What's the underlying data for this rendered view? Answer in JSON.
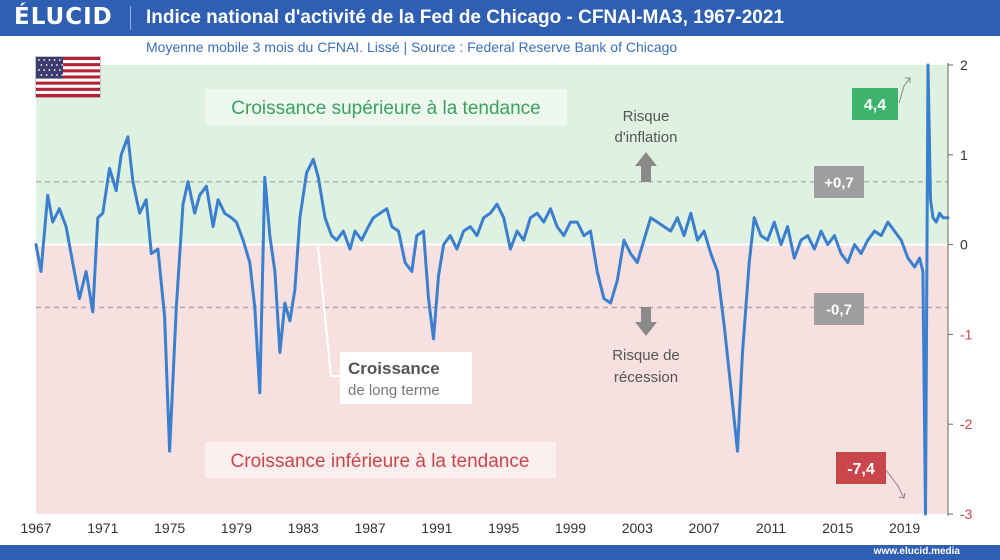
{
  "header": {
    "logo": "ÉLUCID",
    "title": "Indice national d'activité de la Fed de Chicago - CFNAI-MA3, 1967-2021",
    "subtitle": "Moyenne mobile 3 mois du CFNAI. Lissé  |  Source : Federal Reserve Bank of Chicago"
  },
  "footer": {
    "website": "www.elucid.media"
  },
  "colors": {
    "line": "#3b7fce",
    "positive_zone": "#dff2e1",
    "negative_zone": "#f7e0e0",
    "badge_high": "#3db36b",
    "badge_low": "#c9474a",
    "badge_grey": "#9e9e9e",
    "neg_tick": "#c9474a"
  },
  "icons": {
    "flag": "us-flag-icon",
    "up_arrow": "arrow-up-icon",
    "down_arrow": "arrow-down-icon"
  },
  "chart_data": {
    "type": "line",
    "xlim": [
      1967,
      2021.6
    ],
    "ylim": [
      -3,
      2
    ],
    "x_ticks": [
      1967,
      1971,
      1975,
      1979,
      1983,
      1987,
      1991,
      1995,
      1999,
      2003,
      2007,
      2011,
      2015,
      2019
    ],
    "y_ticks": [
      2,
      1,
      0,
      -1,
      -2,
      -3
    ],
    "threshold_lines": [
      0.7,
      -0.7
    ],
    "zones": {
      "upper_label": "Croissance supérieure à la tendance",
      "lower_label": "Croissance inférieure à la tendance"
    },
    "annotations": {
      "inflation": [
        "Risque",
        "d'inflation"
      ],
      "recession": [
        "Risque de",
        "récession"
      ],
      "long_term_title": "Croissance",
      "long_term_sub": "de long terme",
      "badge_plus": "+0,7",
      "badge_minus": "-0,7",
      "badge_max": "4,4",
      "badge_min": "-7,4"
    },
    "series": [
      {
        "x": [
          1967.0,
          1967.3,
          1967.7,
          1968.0,
          1968.4,
          1968.8,
          1969.2,
          1969.6,
          1970.0,
          1970.4,
          1970.7,
          1971.0,
          1971.4,
          1971.8,
          1972.1,
          1972.5,
          1972.8,
          1973.2,
          1973.6,
          1973.9,
          1974.3,
          1974.7,
          1975.0,
          1975.4,
          1975.8,
          1976.1,
          1976.5,
          1976.8,
          1977.2,
          1977.6,
          1977.9,
          1978.3,
          1978.7,
          1979.0,
          1979.4,
          1979.8,
          1980.1,
          1980.4,
          1980.7,
          1981.0,
          1981.3,
          1981.6,
          1981.9,
          1982.2,
          1982.5,
          1982.8,
          1983.2,
          1983.6,
          1983.9,
          1984.3,
          1984.7,
          1985.0,
          1985.4,
          1985.8,
          1986.1,
          1986.5,
          1986.9,
          1987.2,
          1987.6,
          1988.0,
          1988.3,
          1988.7,
          1989.1,
          1989.5,
          1989.8,
          1990.2,
          1990.5,
          1990.8,
          1991.1,
          1991.4,
          1991.8,
          1992.2,
          1992.6,
          1993.0,
          1993.4,
          1993.8,
          1994.2,
          1994.6,
          1995.0,
          1995.4,
          1995.8,
          1996.2,
          1996.6,
          1997.0,
          1997.4,
          1997.8,
          1998.2,
          1998.6,
          1999.0,
          1999.4,
          1999.8,
          2000.2,
          2000.6,
          2001.0,
          2001.4,
          2001.8,
          2002.2,
          2002.6,
          2003.0,
          2003.4,
          2003.8,
          2004.2,
          2004.6,
          2005.0,
          2005.4,
          2005.8,
          2006.2,
          2006.6,
          2007.0,
          2007.4,
          2007.8,
          2008.2,
          2008.6,
          2009.0,
          2009.3,
          2009.7,
          2010.0,
          2010.4,
          2010.8,
          2011.2,
          2011.6,
          2012.0,
          2012.4,
          2012.8,
          2013.2,
          2013.6,
          2014.0,
          2014.4,
          2014.8,
          2015.2,
          2015.6,
          2016.0,
          2016.4,
          2016.8,
          2017.2,
          2017.6,
          2018.0,
          2018.4,
          2018.8,
          2019.2,
          2019.6,
          2019.9,
          2020.1,
          2020.25,
          2020.4,
          2020.55,
          2020.7,
          2020.9,
          2021.1,
          2021.3,
          2021.6
        ],
        "y": [
          0.0,
          -0.3,
          0.55,
          0.25,
          0.4,
          0.2,
          -0.2,
          -0.6,
          -0.3,
          -0.75,
          0.3,
          0.35,
          0.85,
          0.6,
          1.0,
          1.2,
          0.7,
          0.35,
          0.5,
          -0.1,
          -0.05,
          -0.8,
          -2.3,
          -0.7,
          0.45,
          0.7,
          0.35,
          0.55,
          0.65,
          0.2,
          0.5,
          0.35,
          0.3,
          0.25,
          0.05,
          -0.2,
          -0.7,
          -1.65,
          0.75,
          0.1,
          -0.3,
          -1.2,
          -0.65,
          -0.85,
          -0.5,
          0.3,
          0.8,
          0.95,
          0.75,
          0.3,
          0.1,
          0.05,
          0.15,
          -0.05,
          0.15,
          0.05,
          0.2,
          0.3,
          0.35,
          0.4,
          0.2,
          0.15,
          -0.2,
          -0.3,
          0.1,
          0.15,
          -0.6,
          -1.05,
          -0.35,
          0.0,
          0.1,
          -0.05,
          0.15,
          0.2,
          0.1,
          0.3,
          0.35,
          0.45,
          0.3,
          -0.05,
          0.15,
          0.05,
          0.3,
          0.35,
          0.25,
          0.4,
          0.2,
          0.1,
          0.25,
          0.25,
          0.1,
          0.15,
          -0.3,
          -0.6,
          -0.65,
          -0.4,
          0.05,
          -0.1,
          -0.2,
          0.05,
          0.3,
          0.25,
          0.2,
          0.15,
          0.3,
          0.1,
          0.35,
          0.05,
          0.15,
          -0.1,
          -0.3,
          -0.9,
          -1.6,
          -2.3,
          -1.2,
          -0.2,
          0.3,
          0.1,
          0.05,
          0.25,
          0.0,
          0.2,
          -0.15,
          0.05,
          0.1,
          -0.05,
          0.15,
          0.0,
          0.1,
          -0.1,
          -0.2,
          0.0,
          -0.1,
          0.05,
          0.15,
          0.1,
          0.25,
          0.15,
          0.05,
          -0.15,
          -0.25,
          -0.15,
          -0.3,
          -3.0,
          2.0,
          0.5,
          0.3,
          0.25,
          0.35,
          0.3,
          0.3
        ]
      }
    ]
  }
}
